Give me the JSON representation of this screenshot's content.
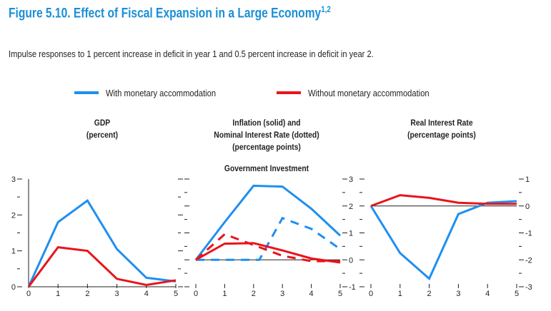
{
  "title": "Figure 5.10.  Effect of Fiscal Expansion in a Large Economy",
  "title_footnote": "1,2",
  "subtitle": "Impulse responses to 1 percent increase in deficit in year 1 and 0.5 percent increase in deficit in year 2.",
  "colors": {
    "title": "#1a8fd6",
    "with_accommodation": "#1f8ff0",
    "without_accommodation": "#e8141b"
  },
  "legend": [
    {
      "label": "With monetary accommodation",
      "color": "#1f8ff0"
    },
    {
      "label": "Without monetary accommodation",
      "color": "#e8141b"
    }
  ],
  "chart_data": [
    {
      "type": "line",
      "title": "GDP",
      "subtitle": "(percent)",
      "x": [
        0,
        1,
        2,
        3,
        4,
        5
      ],
      "ylim": [
        0,
        3
      ],
      "y_ticks": [
        0,
        1,
        2,
        3
      ],
      "tick_side": "left",
      "series": [
        {
          "name": "With monetary accommodation",
          "style": "solid",
          "color": "#1f8ff0",
          "values": [
            0,
            1.8,
            2.4,
            1.05,
            0.25,
            0.15
          ]
        },
        {
          "name": "Without monetary accommodation",
          "style": "solid",
          "color": "#e8141b",
          "values": [
            0,
            1.1,
            1.0,
            0.22,
            0.05,
            0.18
          ]
        }
      ]
    },
    {
      "type": "line",
      "title": "Inflation (solid) and",
      "title_line2": "Nominal Interest Rate (dotted)",
      "subtitle": "(percentage points)",
      "heading": "Government Investment",
      "x": [
        0,
        1,
        2,
        3,
        4,
        5
      ],
      "ylim": [
        -1,
        3
      ],
      "y_ticks": [
        -1,
        0,
        1,
        2,
        3
      ],
      "tick_side": "right",
      "zero_line": true,
      "series": [
        {
          "name": "With monetary accommodation",
          "style": "solid",
          "color": "#1f8ff0",
          "values": [
            0,
            1.4,
            2.75,
            2.72,
            1.9,
            0.9
          ]
        },
        {
          "name": "With monetary accommodation",
          "style": "dashed",
          "color": "#1f8ff0",
          "x": [
            0,
            1,
            2,
            2.2,
            3,
            4,
            5
          ],
          "values": [
            0,
            0,
            0,
            0,
            1.55,
            1.15,
            0.4
          ]
        },
        {
          "name": "Without monetary accommodation",
          "style": "solid",
          "color": "#e8141b",
          "values": [
            0,
            0.6,
            0.62,
            0.35,
            0.05,
            -0.1
          ]
        },
        {
          "name": "Without monetary accommodation",
          "style": "dashed",
          "color": "#e8141b",
          "values": [
            0,
            0.95,
            0.55,
            0.15,
            -0.05,
            -0.05
          ]
        }
      ]
    },
    {
      "type": "line",
      "title": "Real Interest Rate",
      "subtitle": "(percentage points)",
      "x": [
        0,
        1,
        2,
        3,
        4,
        5
      ],
      "ylim": [
        -3,
        1
      ],
      "y_ticks": [
        -3,
        -2,
        -1,
        0,
        1
      ],
      "tick_side": "right",
      "zero_line": true,
      "series": [
        {
          "name": "With monetary accommodation",
          "style": "solid",
          "color": "#1f8ff0",
          "values": [
            0,
            -1.75,
            -2.7,
            -0.3,
            0.12,
            0.18
          ]
        },
        {
          "name": "Without monetary accommodation",
          "style": "solid",
          "color": "#e8141b",
          "values": [
            0,
            0.4,
            0.3,
            0.12,
            0.08,
            0.08
          ]
        }
      ]
    }
  ]
}
